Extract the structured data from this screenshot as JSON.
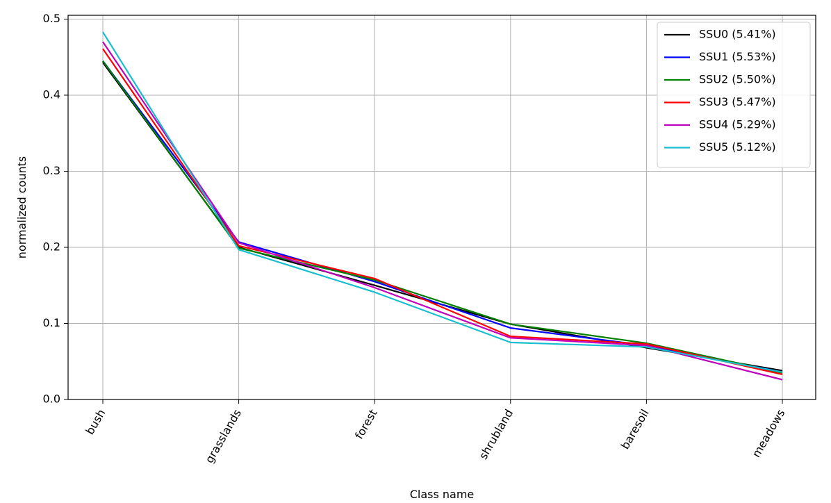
{
  "chart_data": {
    "type": "line",
    "categories": [
      "bush",
      "grasslands",
      "forest",
      "shrubland",
      "baresoil",
      "meadows"
    ],
    "series": [
      {
        "name": "SSU0 (5.41%)",
        "color": "#000000",
        "values": [
          0.443,
          0.2,
          0.15,
          0.099,
          0.068,
          0.038
        ]
      },
      {
        "name": "SSU1 (5.53%)",
        "color": "#0000ff",
        "values": [
          0.445,
          0.207,
          0.155,
          0.094,
          0.071,
          0.036
        ]
      },
      {
        "name": "SSU2 (5.50%)",
        "color": "#008000",
        "values": [
          0.445,
          0.199,
          0.157,
          0.099,
          0.074,
          0.035
        ]
      },
      {
        "name": "SSU3 (5.47%)",
        "color": "#ff0000",
        "values": [
          0.461,
          0.202,
          0.159,
          0.083,
          0.073,
          0.033
        ]
      },
      {
        "name": "SSU4 (5.29%)",
        "color": "#bf00bf",
        "values": [
          0.47,
          0.206,
          0.147,
          0.081,
          0.071,
          0.026
        ]
      },
      {
        "name": "SSU5 (5.12%)",
        "color": "#17becf",
        "values": [
          0.483,
          0.197,
          0.141,
          0.075,
          0.069,
          0.036
        ]
      }
    ],
    "yticks": [
      "0.0",
      "0.1",
      "0.2",
      "0.3",
      "0.4",
      "0.5"
    ],
    "ytick_values": [
      0.0,
      0.1,
      0.2,
      0.3,
      0.4,
      0.5
    ],
    "xlabel": "Class name",
    "ylabel": "normalized counts",
    "ylim": [
      0.0,
      0.505
    ],
    "grid": true,
    "legend_position": "top-right"
  }
}
